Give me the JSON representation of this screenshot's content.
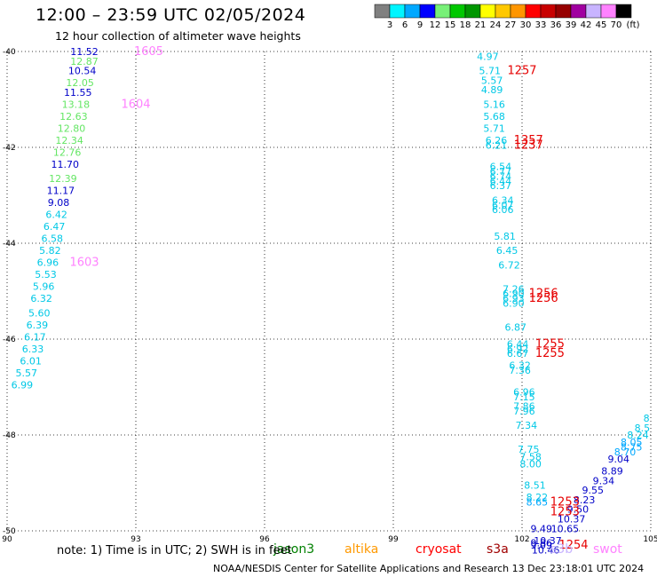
{
  "header": {
    "title": "12:00 – 23:59 UTC 02/05/2024",
    "subtitle": "12 hour collection of altimeter wave heights"
  },
  "colorbar": {
    "colors": [
      "#808080",
      "#00f5ff",
      "#00a8ff",
      "#0000ff",
      "#78f078",
      "#00c800",
      "#009600",
      "#ffff00",
      "#ffc800",
      "#ff9600",
      "#ff0000",
      "#c80000",
      "#960000",
      "#a000a0",
      "#c8b4ff",
      "#ff82ff",
      "#000000"
    ],
    "labels": [
      "3",
      "6",
      "9",
      "12",
      "15",
      "18",
      "21",
      "24",
      "27",
      "30",
      "33",
      "36",
      "39",
      "42",
      "45",
      "70"
    ],
    "unit": "(ft)"
  },
  "footer": {
    "note": "note:  1) Time is in UTC;  2) SWH is in feet",
    "credit": "NOAA/NESDIS Center for Satellite Applications and Research    13 Dec 23:18:01 UTC 2024"
  },
  "legend": [
    {
      "name": "jason3",
      "color": "#008000"
    },
    {
      "name": "altika",
      "color": "#ff9900"
    },
    {
      "name": "cryosat",
      "color": "#ff0000"
    },
    {
      "name": "s3a",
      "color": "#a00000"
    },
    {
      "name": "s3b",
      "color": "#c8b4ff"
    },
    {
      "name": "swot",
      "color": "#ff82ff"
    }
  ],
  "chart_data": {
    "type": "scatter",
    "title": "12:00 – 23:59 UTC 02/05/2024",
    "xlim": [
      90,
      105
    ],
    "ylim": [
      -50,
      -40
    ],
    "xticks": [
      "90",
      "93",
      "96",
      "99",
      "102",
      "105"
    ],
    "yticks": [
      "-40",
      "-42",
      "-44",
      "-46",
      "-48",
      "-50"
    ],
    "grid": true,
    "colors": {
      "c3": "#00c8e6",
      "c6": "#00c8e6",
      "c9": "#00a8ff",
      "c12": "#0000c8",
      "c15": "#64e664",
      "c18": "#00c800",
      "time_red": "#e60000",
      "time_pink": "#ff82ff"
    },
    "points": [
      {
        "x": 91.8,
        "y": -40.0,
        "t": "11.52",
        "c": "c12"
      },
      {
        "x": 91.8,
        "y": -40.2,
        "t": "12.87",
        "c": "c15"
      },
      {
        "x": 91.75,
        "y": -40.4,
        "t": "10.54",
        "c": "c12"
      },
      {
        "x": 91.7,
        "y": -40.65,
        "t": "12.05",
        "c": "c15"
      },
      {
        "x": 91.65,
        "y": -40.85,
        "t": "11.55",
        "c": "c12"
      },
      {
        "x": 91.6,
        "y": -41.1,
        "t": "13.18",
        "c": "c15"
      },
      {
        "x": 91.55,
        "y": -41.35,
        "t": "12.63",
        "c": "c15"
      },
      {
        "x": 91.5,
        "y": -41.6,
        "t": "12.80",
        "c": "c15"
      },
      {
        "x": 91.45,
        "y": -41.85,
        "t": "12.34",
        "c": "c15"
      },
      {
        "x": 91.4,
        "y": -42.1,
        "t": "12.76",
        "c": "c15"
      },
      {
        "x": 91.35,
        "y": -42.35,
        "t": "11.70",
        "c": "c12"
      },
      {
        "x": 91.3,
        "y": -42.65,
        "t": "12.39",
        "c": "c15"
      },
      {
        "x": 91.25,
        "y": -42.9,
        "t": "11.17",
        "c": "c12"
      },
      {
        "x": 91.2,
        "y": -43.15,
        "t": "9.08",
        "c": "c12"
      },
      {
        "x": 91.15,
        "y": -43.4,
        "t": "6.42",
        "c": "c6"
      },
      {
        "x": 91.1,
        "y": -43.65,
        "t": "6.47",
        "c": "c6"
      },
      {
        "x": 91.05,
        "y": -43.9,
        "t": "6.58",
        "c": "c6"
      },
      {
        "x": 91.0,
        "y": -44.15,
        "t": "5.82",
        "c": "c6"
      },
      {
        "x": 90.95,
        "y": -44.4,
        "t": "6.96",
        "c": "c6"
      },
      {
        "x": 90.9,
        "y": -44.65,
        "t": "5.53",
        "c": "c6"
      },
      {
        "x": 90.85,
        "y": -44.9,
        "t": "5.96",
        "c": "c6"
      },
      {
        "x": 90.8,
        "y": -45.15,
        "t": "6.32",
        "c": "c6"
      },
      {
        "x": 90.75,
        "y": -45.45,
        "t": "5.60",
        "c": "c6"
      },
      {
        "x": 90.7,
        "y": -45.7,
        "t": "6.39",
        "c": "c6"
      },
      {
        "x": 90.65,
        "y": -45.95,
        "t": "6.17",
        "c": "c6"
      },
      {
        "x": 90.6,
        "y": -46.2,
        "t": "6.33",
        "c": "c6"
      },
      {
        "x": 90.55,
        "y": -46.45,
        "t": "6.01",
        "c": "c6"
      },
      {
        "x": 90.45,
        "y": -46.7,
        "t": "5.57",
        "c": "c6"
      },
      {
        "x": 90.35,
        "y": -46.95,
        "t": "6.99",
        "c": "c6"
      },
      {
        "x": 93.3,
        "y": -40.0,
        "t": "1605",
        "c": "time_pink"
      },
      {
        "x": 93.0,
        "y": -41.1,
        "t": "1604",
        "c": "time_pink"
      },
      {
        "x": 91.8,
        "y": -44.4,
        "t": "1603",
        "c": "time_pink"
      },
      {
        "x": 101.2,
        "y": -40.1,
        "t": "4.97",
        "c": "c6"
      },
      {
        "x": 101.25,
        "y": -40.4,
        "t": "5.71",
        "c": "c6"
      },
      {
        "x": 101.3,
        "y": -40.6,
        "t": "5.57",
        "c": "c6"
      },
      {
        "x": 101.3,
        "y": -40.8,
        "t": "4.89",
        "c": "c6"
      },
      {
        "x": 101.35,
        "y": -41.1,
        "t": "5.16",
        "c": "c6"
      },
      {
        "x": 101.35,
        "y": -41.35,
        "t": "5.68",
        "c": "c6"
      },
      {
        "x": 101.35,
        "y": -41.6,
        "t": "5.71",
        "c": "c6"
      },
      {
        "x": 101.4,
        "y": -41.85,
        "t": "6.26",
        "c": "c6"
      },
      {
        "x": 101.4,
        "y": -41.95,
        "t": "6.21",
        "c": "c6"
      },
      {
        "x": 101.5,
        "y": -42.4,
        "t": "6.54",
        "c": "c6"
      },
      {
        "x": 101.5,
        "y": -42.5,
        "t": "6.77",
        "c": "c6"
      },
      {
        "x": 101.5,
        "y": -42.6,
        "t": "6.74",
        "c": "c6"
      },
      {
        "x": 101.5,
        "y": -42.7,
        "t": "6.44",
        "c": "c6"
      },
      {
        "x": 101.5,
        "y": -42.8,
        "t": "6.37",
        "c": "c6"
      },
      {
        "x": 101.55,
        "y": -43.1,
        "t": "6.34",
        "c": "c6"
      },
      {
        "x": 101.55,
        "y": -43.2,
        "t": "6.07",
        "c": "c6"
      },
      {
        "x": 101.55,
        "y": -43.3,
        "t": "6.06",
        "c": "c6"
      },
      {
        "x": 101.6,
        "y": -43.85,
        "t": "5.81",
        "c": "c6"
      },
      {
        "x": 101.65,
        "y": -44.15,
        "t": "6.45",
        "c": "c6"
      },
      {
        "x": 101.7,
        "y": -44.45,
        "t": "6.72",
        "c": "c6"
      },
      {
        "x": 101.8,
        "y": -44.95,
        "t": "7.26",
        "c": "c6"
      },
      {
        "x": 101.8,
        "y": -45.05,
        "t": "6.90",
        "c": "c6"
      },
      {
        "x": 101.8,
        "y": -45.15,
        "t": "6.93",
        "c": "c6"
      },
      {
        "x": 101.8,
        "y": -45.25,
        "t": "6.90",
        "c": "c6"
      },
      {
        "x": 101.85,
        "y": -45.75,
        "t": "6.87",
        "c": "c6"
      },
      {
        "x": 101.9,
        "y": -46.1,
        "t": "6.44",
        "c": "c6"
      },
      {
        "x": 101.9,
        "y": -46.2,
        "t": "6.92",
        "c": "c6"
      },
      {
        "x": 101.9,
        "y": -46.3,
        "t": "6.67",
        "c": "c6"
      },
      {
        "x": 101.95,
        "y": -46.55,
        "t": "6.32",
        "c": "c6"
      },
      {
        "x": 101.95,
        "y": -46.65,
        "t": "7.36",
        "c": "c6"
      },
      {
        "x": 102.05,
        "y": -47.1,
        "t": "6.96",
        "c": "c6"
      },
      {
        "x": 102.05,
        "y": -47.2,
        "t": "7.15",
        "c": "c6"
      },
      {
        "x": 102.05,
        "y": -47.4,
        "t": "7.86",
        "c": "c6"
      },
      {
        "x": 102.05,
        "y": -47.5,
        "t": "7.96",
        "c": "c6"
      },
      {
        "x": 102.1,
        "y": -47.8,
        "t": "7.34",
        "c": "c6"
      },
      {
        "x": 102.15,
        "y": -48.3,
        "t": "7.75",
        "c": "c6"
      },
      {
        "x": 102.2,
        "y": -48.45,
        "t": "7.58",
        "c": "c6"
      },
      {
        "x": 102.2,
        "y": -48.6,
        "t": "8.00",
        "c": "c6"
      },
      {
        "x": 102.3,
        "y": -49.05,
        "t": "8.51",
        "c": "c6"
      },
      {
        "x": 102.35,
        "y": -49.3,
        "t": "8.22",
        "c": "c6"
      },
      {
        "x": 102.35,
        "y": -49.4,
        "t": "8.65",
        "c": "c9"
      },
      {
        "x": 102.0,
        "y": -40.4,
        "t": "1257",
        "c": "time_red"
      },
      {
        "x": 102.15,
        "y": -41.85,
        "t": "1357",
        "c": "time_red"
      },
      {
        "x": 102.15,
        "y": -41.95,
        "t": "1237",
        "c": "time_red"
      },
      {
        "x": 102.5,
        "y": -45.05,
        "t": "1256",
        "c": "time_red"
      },
      {
        "x": 102.5,
        "y": -45.15,
        "t": "1256",
        "c": "time_red"
      },
      {
        "x": 102.65,
        "y": -46.1,
        "t": "1255",
        "c": "time_red"
      },
      {
        "x": 102.65,
        "y": -46.3,
        "t": "1255",
        "c": "time_red"
      },
      {
        "x": 104.9,
        "y": -47.65,
        "t": "8",
        "c": "c6"
      },
      {
        "x": 104.8,
        "y": -47.85,
        "t": "8.5",
        "c": "c6"
      },
      {
        "x": 104.7,
        "y": -48.0,
        "t": "8.24",
        "c": "c6"
      },
      {
        "x": 104.55,
        "y": -48.15,
        "t": "8.05",
        "c": "c9"
      },
      {
        "x": 104.55,
        "y": -48.25,
        "t": "8.75",
        "c": "c9"
      },
      {
        "x": 104.4,
        "y": -48.35,
        "t": "8.70",
        "c": "c9"
      },
      {
        "x": 104.25,
        "y": -48.5,
        "t": "9.04",
        "c": "c12"
      },
      {
        "x": 104.1,
        "y": -48.75,
        "t": "8.89",
        "c": "c12"
      },
      {
        "x": 103.9,
        "y": -48.95,
        "t": "9.34",
        "c": "c12"
      },
      {
        "x": 103.65,
        "y": -49.15,
        "t": "9.55",
        "c": "c12"
      },
      {
        "x": 103.45,
        "y": -49.35,
        "t": "8.23",
        "c": "c12"
      },
      {
        "x": 103.3,
        "y": -49.55,
        "t": "9.50",
        "c": "c12"
      },
      {
        "x": 103.15,
        "y": -49.75,
        "t": "10.37",
        "c": "c12"
      },
      {
        "x": 103.0,
        "y": -49.95,
        "t": "10.65",
        "c": "c12"
      },
      {
        "x": 102.45,
        "y": -49.95,
        "t": "9.49",
        "c": "c12"
      },
      {
        "x": 102.6,
        "y": -50.2,
        "t": "10.37",
        "c": "c12"
      },
      {
        "x": 102.45,
        "y": -50.25,
        "t": "9.86",
        "c": "c12"
      },
      {
        "x": 102.45,
        "y": -50.3,
        "t": "9.09",
        "c": "c12"
      },
      {
        "x": 102.55,
        "y": -50.4,
        "t": "10.46",
        "c": "c12"
      },
      {
        "x": 103.0,
        "y": -49.4,
        "t": "1253",
        "c": "time_red"
      },
      {
        "x": 103.0,
        "y": -49.6,
        "t": "1253",
        "c": "time_red"
      },
      {
        "x": 103.2,
        "y": -50.3,
        "t": "1254",
        "c": "time_red"
      }
    ]
  }
}
